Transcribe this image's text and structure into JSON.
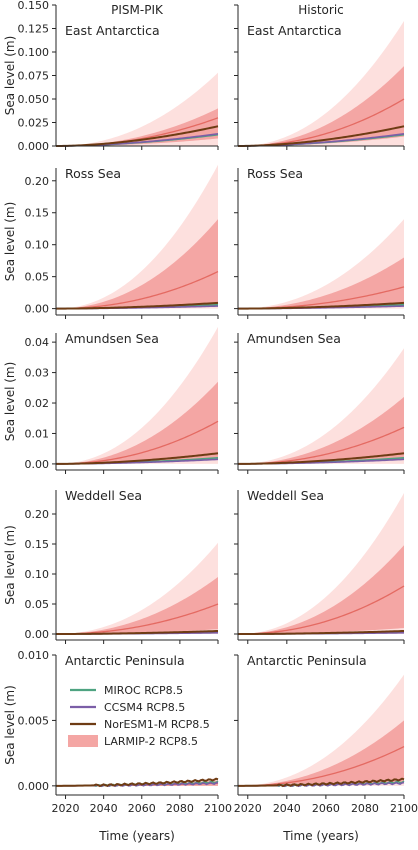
{
  "chart_data": {
    "type": "line",
    "layout": "5x2 grid of panels, shared x axis per column, shared y axis per row",
    "column_titles": [
      "PISM-PIK",
      "Historic"
    ],
    "xlabel": "Time (years)",
    "ylabel": "Sea level (m)",
    "xlim": [
      2015,
      2100
    ],
    "xticks": [
      "2020",
      "2040",
      "2060",
      "2080",
      "2100"
    ],
    "legend": {
      "placement": "panel Antarctic Peninsula / PISM-PIK, center-left",
      "entries": [
        {
          "label": "MIROC RCP8.5",
          "color": "#4ea381",
          "kind": "line"
        },
        {
          "label": "CCSM4 RCP8.5",
          "color": "#7b5ea7",
          "kind": "line"
        },
        {
          "label": "NorESM1-M RCP8.5",
          "color": "#6e3c14",
          "kind": "line"
        },
        {
          "label": "LARMIP-2 RCP8.5",
          "color": "#f49c9c",
          "kind": "band"
        }
      ]
    },
    "colors": {
      "band_outer": "#fde0de",
      "band_inner": "#f4a6a4",
      "median_line": "#e46a62",
      "miroc": "#4ea381",
      "ccsm4": "#7b5ea7",
      "noresm": "#6e3c14"
    },
    "rows": [
      {
        "region": "East Antarctica",
        "ylim": [
          0,
          0.15
        ],
        "yticks": [
          "0.000",
          "0.025",
          "0.050",
          "0.075",
          "0.100",
          "0.125",
          "0.150"
        ],
        "panels": [
          {
            "column": "PISM-PIK",
            "larmip_end": {
              "outer_low": 0.0,
              "inner_low": 0.008,
              "median": 0.03,
              "inner_high": 0.04,
              "outer_high": 0.078
            },
            "series_end": {
              "MIROC": 0.012,
              "CCSM4": 0.013,
              "NorESM1-M": 0.021
            }
          },
          {
            "column": "Historic",
            "larmip_end": {
              "outer_low": 0.0,
              "inner_low": 0.01,
              "median": 0.05,
              "inner_high": 0.085,
              "outer_high": 0.133
            },
            "series_end": {
              "MIROC": 0.012,
              "CCSM4": 0.013,
              "NorESM1-M": 0.021
            }
          }
        ]
      },
      {
        "region": "Ross Sea",
        "ylim": [
          -0.01,
          0.22
        ],
        "yticks": [
          "0.00",
          "0.05",
          "0.10",
          "0.15",
          "0.20"
        ],
        "panels": [
          {
            "column": "PISM-PIK",
            "larmip_end": {
              "outer_low": 0.0,
              "inner_low": 0.005,
              "median": 0.058,
              "inner_high": 0.14,
              "outer_high": 0.225
            },
            "series_end": {
              "MIROC": 0.006,
              "CCSM4": 0.004,
              "NorESM1-M": 0.009
            }
          },
          {
            "column": "Historic",
            "larmip_end": {
              "outer_low": 0.0,
              "inner_low": 0.004,
              "median": 0.034,
              "inner_high": 0.08,
              "outer_high": 0.14
            },
            "series_end": {
              "MIROC": 0.006,
              "CCSM4": 0.004,
              "NorESM1-M": 0.009
            }
          }
        ]
      },
      {
        "region": "Amundsen Sea",
        "ylim": [
          -0.002,
          0.043
        ],
        "yticks": [
          "0.00",
          "0.01",
          "0.02",
          "0.03",
          "0.04"
        ],
        "panels": [
          {
            "column": "PISM-PIK",
            "larmip_end": {
              "outer_low": 0.0,
              "inner_low": 0.002,
              "median": 0.014,
              "inner_high": 0.027,
              "outer_high": 0.045
            },
            "series_end": {
              "MIROC": 0.002,
              "CCSM4": 0.0015,
              "NorESM1-M": 0.0035
            }
          },
          {
            "column": "Historic",
            "larmip_end": {
              "outer_low": 0.0,
              "inner_low": 0.002,
              "median": 0.012,
              "inner_high": 0.022,
              "outer_high": 0.038
            },
            "series_end": {
              "MIROC": 0.002,
              "CCSM4": 0.0015,
              "NorESM1-M": 0.0035
            }
          }
        ]
      },
      {
        "region": "Weddell Sea",
        "ylim": [
          -0.01,
          0.24
        ],
        "yticks": [
          "0.00",
          "0.05",
          "0.10",
          "0.15",
          "0.20"
        ],
        "panels": [
          {
            "column": "PISM-PIK",
            "larmip_end": {
              "outer_low": 0.0,
              "inner_low": 0.008,
              "median": 0.05,
              "inner_high": 0.095,
              "outer_high": 0.152
            },
            "series_end": {
              "MIROC": 0.003,
              "CCSM4": 0.002,
              "NorESM1-M": 0.005
            }
          },
          {
            "column": "Historic",
            "larmip_end": {
              "outer_low": 0.0,
              "inner_low": 0.01,
              "median": 0.08,
              "inner_high": 0.148,
              "outer_high": 0.235
            },
            "series_end": {
              "MIROC": 0.003,
              "CCSM4": 0.002,
              "NorESM1-M": 0.005
            }
          }
        ]
      },
      {
        "region": "Antarctic Peninsula",
        "ylim": [
          -0.0007,
          0.01
        ],
        "yticks": [
          "0.000",
          "0.005",
          "0.010"
        ],
        "panels": [
          {
            "column": "PISM-PIK",
            "larmip_end": {
              "outer_low": 0.0,
              "inner_low": 0.0,
              "median": 0.0002,
              "inner_high": 0.0004,
              "outer_high": 0.0006
            },
            "series_end": {
              "MIROC": 0.0003,
              "CCSM4": 0.0002,
              "NorESM1-M": 0.0005
            }
          },
          {
            "column": "Historic",
            "larmip_end": {
              "outer_low": 0.0,
              "inner_low": 0.0003,
              "median": 0.003,
              "inner_high": 0.005,
              "outer_high": 0.0085
            },
            "series_end": {
              "MIROC": 0.0003,
              "CCSM4": 0.0002,
              "NorESM1-M": 0.0005
            }
          }
        ]
      }
    ]
  }
}
